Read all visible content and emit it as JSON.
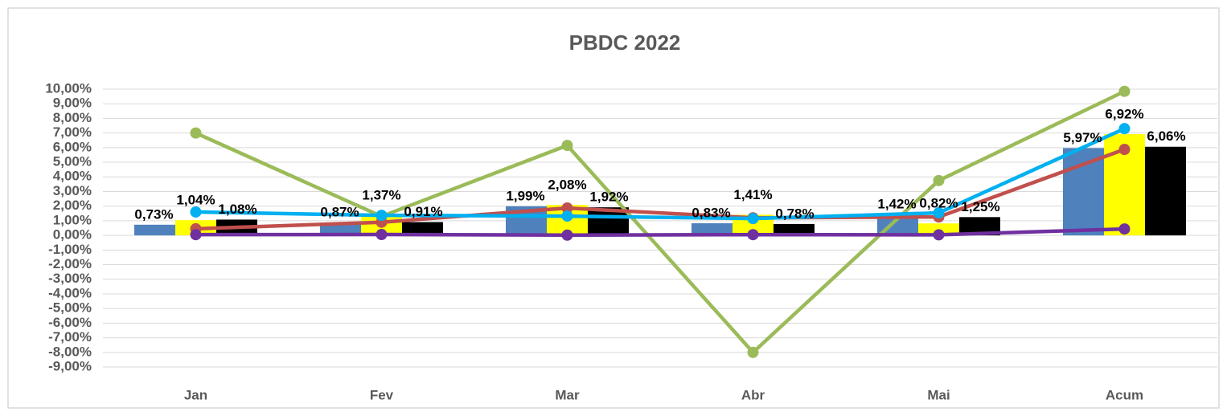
{
  "chart_data": {
    "type": "bar",
    "title": "PBDC 2022",
    "categories": [
      "Jan",
      "Fev",
      "Mar",
      "Abr",
      "Mai",
      "Acum"
    ],
    "series": [
      {
        "type": "bar",
        "color": "#4f81bd",
        "values": [
          0.73,
          0.87,
          1.99,
          0.83,
          1.42,
          5.97
        ],
        "value_labels": [
          "0,73%",
          "0,87%",
          "1,99%",
          "0,83%",
          "1,42%",
          "5,97%"
        ]
      },
      {
        "type": "bar",
        "color": "#ffff00",
        "values": [
          1.04,
          1.37,
          2.08,
          1.41,
          0.82,
          6.92
        ],
        "value_labels": [
          "1,04%",
          "1,37%",
          "2,08%",
          "1,41%",
          "0,82%",
          "6,92%"
        ]
      },
      {
        "type": "bar",
        "color": "#000000",
        "values": [
          1.08,
          0.91,
          1.92,
          0.78,
          1.25,
          6.06
        ],
        "value_labels": [
          "1,08%",
          "0,91%",
          "1,92%",
          "0,78%",
          "1,25%",
          "6,06%"
        ]
      },
      {
        "type": "line",
        "color": "#9bbb59",
        "values": [
          7.0,
          1.3,
          6.15,
          -8.0,
          3.75,
          9.85
        ]
      },
      {
        "type": "line",
        "color": "#c0504d",
        "values": [
          0.45,
          0.9,
          1.87,
          1.2,
          1.26,
          5.88
        ]
      },
      {
        "type": "line",
        "color": "#00b0f0",
        "values": [
          1.6,
          1.37,
          1.32,
          1.15,
          1.54,
          7.3
        ]
      },
      {
        "type": "line",
        "color": "#7030a0",
        "values": [
          0.05,
          0.06,
          0.02,
          0.05,
          0.04,
          0.44
        ]
      }
    ],
    "ylim": [
      -9,
      10
    ],
    "yticks": [
      {
        "value": -9,
        "label": "-9,00%"
      },
      {
        "value": -8,
        "label": "-8,00%"
      },
      {
        "value": -7,
        "label": "-7,00%"
      },
      {
        "value": -6,
        "label": "-6,00%"
      },
      {
        "value": -5,
        "label": "-5,00%"
      },
      {
        "value": -4,
        "label": "-4,00%"
      },
      {
        "value": -3,
        "label": "-3,00%"
      },
      {
        "value": -2,
        "label": "-2,00%"
      },
      {
        "value": -1,
        "label": "-1,00%"
      },
      {
        "value": 0,
        "label": "0,00%"
      },
      {
        "value": 1,
        "label": "1,00%"
      },
      {
        "value": 2,
        "label": "2,00%"
      },
      {
        "value": 3,
        "label": "3,00%"
      },
      {
        "value": 4,
        "label": "4,00%"
      },
      {
        "value": 5,
        "label": "5,00%"
      },
      {
        "value": 6,
        "label": "6,00%"
      },
      {
        "value": 7,
        "label": "7,00%"
      },
      {
        "value": 8,
        "label": "8,00%"
      },
      {
        "value": 9,
        "label": "9,00%"
      },
      {
        "value": 10,
        "label": "10,00%"
      }
    ],
    "grid": true
  }
}
